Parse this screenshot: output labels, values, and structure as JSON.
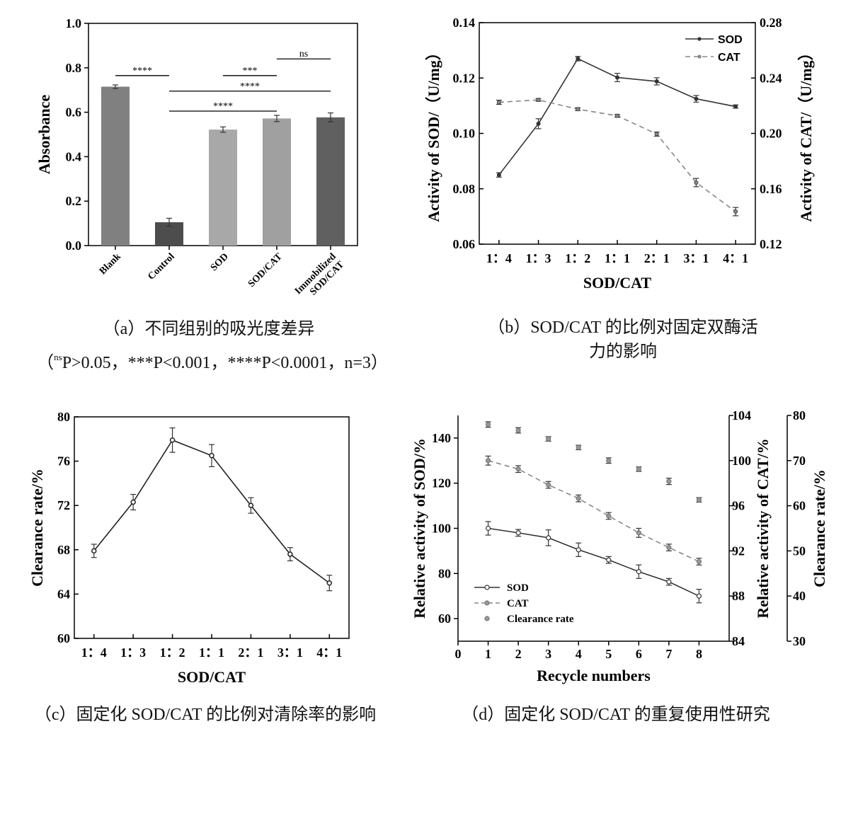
{
  "chart_data": [
    {
      "id": "a",
      "type": "bar",
      "categories": [
        "Blank",
        "Control",
        "SOD",
        "SOD/CAT",
        "Immobilized SOD/CAT"
      ],
      "category_lines": [
        [
          "Blank"
        ],
        [
          "Control"
        ],
        [
          "SOD"
        ],
        [
          "SOD/CAT"
        ],
        [
          "Immobilized",
          "SOD/CAT"
        ]
      ],
      "values": [
        0.715,
        0.105,
        0.522,
        0.572,
        0.577
      ],
      "errors": [
        0.008,
        0.018,
        0.012,
        0.014,
        0.02
      ],
      "bar_colors": [
        "#808080",
        "#4d4d4d",
        "#a8a8a8",
        "#a0a0a0",
        "#606060"
      ],
      "ylabel": "Absorbance",
      "ylim": [
        0,
        1.0
      ],
      "yticks": [
        "0.0",
        "0.2",
        "0.4",
        "0.6",
        "0.8",
        "1.0"
      ],
      "yticks_values": [
        0,
        0.2,
        0.4,
        0.6,
        0.8,
        1.0
      ],
      "significance": [
        {
          "from": 0,
          "to": 1,
          "level": 0.765,
          "label": "****"
        },
        {
          "from": 2,
          "to": 3,
          "level": 0.765,
          "label": "***"
        },
        {
          "from": 3,
          "to": 4,
          "level": 0.84,
          "label": "ns"
        },
        {
          "from": 1,
          "to": 4,
          "level": 0.695,
          "label": "****"
        },
        {
          "from": 1,
          "to": 3,
          "level": 0.605,
          "label": "****"
        }
      ]
    },
    {
      "id": "b",
      "type": "line",
      "categories": [
        "1：4",
        "1：3",
        "1：2",
        "1：1",
        "2：1",
        "3：1",
        "4：1"
      ],
      "xlabel": "SOD/CAT",
      "ylabel": "Activity of SOD/（U/mg）",
      "ylabel_right": "Activity of CAT/（U/mg）",
      "ylim": [
        0.06,
        0.14
      ],
      "yticks": [
        "0.06",
        "0.08",
        "0.10",
        "0.12",
        "0.14"
      ],
      "yticks_values": [
        0.06,
        0.08,
        0.1,
        0.12,
        0.14
      ],
      "ylim_right": [
        0.12,
        0.28
      ],
      "yticks_right": [
        "0.12",
        "0.16",
        "0.20",
        "0.24",
        "0.28"
      ],
      "yticks_right_values": [
        0.12,
        0.16,
        0.2,
        0.24,
        0.28
      ],
      "series": [
        {
          "name": "SOD",
          "axis": "left",
          "style": "solid",
          "values": [
            0.085,
            0.1035,
            0.127,
            0.1202,
            0.1188,
            0.1125,
            0.1097
          ],
          "errors": [
            0.0008,
            0.0018,
            0.0008,
            0.0015,
            0.0013,
            0.0012,
            0.0006
          ]
        },
        {
          "name": "CAT",
          "axis": "right",
          "style": "dashed",
          "values": [
            0.2225,
            0.2242,
            0.2175,
            0.2127,
            0.1995,
            0.1645,
            0.1435
          ],
          "errors": [
            0.0015,
            0.001,
            0.001,
            0.001,
            0.0015,
            0.003,
            0.003
          ]
        }
      ]
    },
    {
      "id": "c",
      "type": "line",
      "categories": [
        "1：4",
        "1：3",
        "1：2",
        "1：1",
        "2：1",
        "3：1",
        "4：1"
      ],
      "xlabel": "SOD/CAT",
      "ylabel": "Clearance rate/%",
      "ylim": [
        60,
        80
      ],
      "yticks": [
        "60",
        "64",
        "68",
        "72",
        "76",
        "80"
      ],
      "yticks_values": [
        60,
        64,
        68,
        72,
        76,
        80
      ],
      "series": [
        {
          "name": "",
          "style": "solid",
          "values": [
            67.9,
            72.3,
            77.9,
            76.5,
            72.0,
            67.6,
            65.0
          ],
          "errors": [
            0.6,
            0.7,
            1.1,
            1.0,
            0.7,
            0.6,
            0.7
          ]
        }
      ]
    },
    {
      "id": "d",
      "type": "line",
      "x": [
        1,
        2,
        3,
        4,
        5,
        6,
        7,
        8
      ],
      "xlim": [
        0,
        9
      ],
      "xticks": [
        "0",
        "1",
        "2",
        "3",
        "4",
        "5",
        "6",
        "7",
        "8"
      ],
      "xticks_values": [
        0,
        1,
        2,
        3,
        4,
        5,
        6,
        7,
        8
      ],
      "xlabel": "Recycle numbers",
      "ylabel": "Relative activity of SOD/%",
      "ylim": [
        50,
        150
      ],
      "yticks": [
        "60",
        "80",
        "100",
        "120",
        "140"
      ],
      "yticks_values": [
        60,
        80,
        100,
        120,
        140
      ],
      "ylabel_right": "Relative activity of CAT/%",
      "ylim_right": [
        84,
        104
      ],
      "yticks_right": [
        "84",
        "88",
        "92",
        "96",
        "100",
        "104"
      ],
      "yticks_right_values": [
        84,
        88,
        92,
        96,
        100,
        104
      ],
      "ylabel_right2": "Clearance rate/%",
      "ylim_right2": [
        30,
        80
      ],
      "yticks_right2": [
        "30",
        "40",
        "50",
        "60",
        "70",
        "80"
      ],
      "yticks_right2_values": [
        30,
        40,
        50,
        60,
        70,
        80
      ],
      "legend_position": "bottom-left",
      "series": [
        {
          "name": "SOD",
          "axis": "left",
          "style": "solid",
          "values": [
            100.0,
            98.0,
            95.8,
            90.5,
            86.0,
            80.8,
            76.3,
            70.0
          ],
          "errors": [
            3.0,
            1.5,
            3.5,
            3.0,
            1.5,
            3.0,
            1.5,
            3.0
          ]
        },
        {
          "name": "CAT",
          "axis": "right",
          "style": "dashed",
          "values": [
            100.0,
            99.25,
            97.85,
            96.65,
            95.1,
            93.6,
            92.3,
            91.05
          ],
          "errors": [
            0.4,
            0.3,
            0.3,
            0.3,
            0.3,
            0.4,
            0.3,
            0.3
          ]
        },
        {
          "name": "Clearance rate",
          "axis": "right2",
          "style": "points",
          "values": [
            78.0,
            76.7,
            74.8,
            72.9,
            70.0,
            68.1,
            65.4,
            61.3
          ],
          "errors": [
            0.6,
            0.6,
            0.5,
            0.5,
            0.6,
            0.5,
            0.7,
            0.5
          ]
        }
      ]
    }
  ],
  "captions": {
    "a_line1": "（a）不同组别的吸光度差异",
    "a_line2_open": "（",
    "a_line2_sup": "ns",
    "a_line2_rest": "P>0.05，***P<0.001，****P<0.0001，n=3）",
    "b_line1": "（b）SOD/CAT 的比例对固定双酶活",
    "b_line2": "力的影响",
    "c": "（c）固定化 SOD/CAT 的比例对清除率的影响",
    "d": "（d）固定化 SOD/CAT 的重复使用性研究"
  }
}
